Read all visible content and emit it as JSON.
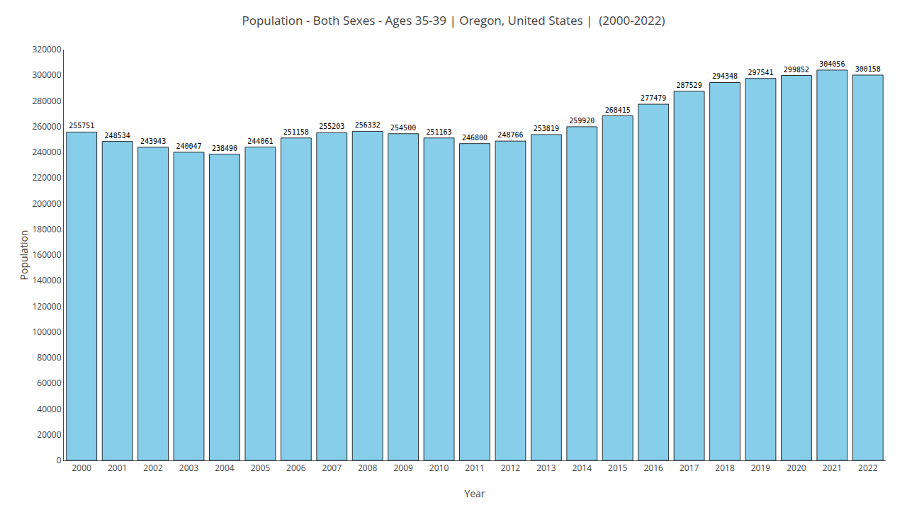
{
  "chart_data": {
    "type": "bar",
    "title": "Population - Both Sexes - Ages 35-39 | Oregon, United States |  (2000-2022)",
    "xlabel": "Year",
    "ylabel": "Population",
    "categories": [
      "2000",
      "2001",
      "2002",
      "2003",
      "2004",
      "2005",
      "2006",
      "2007",
      "2008",
      "2009",
      "2010",
      "2011",
      "2012",
      "2013",
      "2014",
      "2015",
      "2016",
      "2017",
      "2018",
      "2019",
      "2020",
      "2021",
      "2022"
    ],
    "values": [
      255751,
      248534,
      243943,
      240047,
      238490,
      244061,
      251158,
      255203,
      256332,
      254500,
      251163,
      246800,
      248766,
      253819,
      259920,
      268415,
      277479,
      287529,
      294348,
      297541,
      299852,
      304056,
      300158
    ],
    "color": "#87CEEB",
    "ylim": [
      0,
      320000
    ],
    "yticks": [
      0,
      20000,
      40000,
      60000,
      80000,
      100000,
      120000,
      140000,
      160000,
      180000,
      200000,
      220000,
      240000,
      260000,
      280000,
      300000,
      320000
    ],
    "grid": false,
    "data_labels": true
  }
}
